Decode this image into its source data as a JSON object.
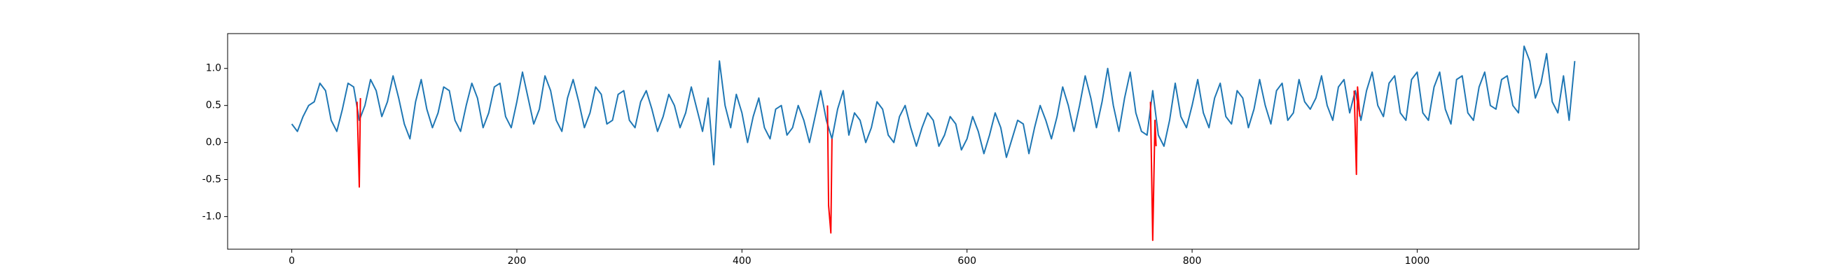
{
  "chart_data": {
    "type": "line",
    "xlim": [
      -57,
      1197
    ],
    "ylim": [
      -1.44,
      1.47
    ],
    "xticks": [
      0,
      200,
      400,
      600,
      800,
      1000
    ],
    "yticks": [
      {
        "value": -1.0,
        "label": "-1.0"
      },
      {
        "value": -0.5,
        "label": "-0.5"
      },
      {
        "value": 0.0,
        "label": "0.0"
      },
      0.5,
      {
        "value": 1.0,
        "label": "1.0"
      }
    ],
    "series": [
      {
        "color": "#1f77b4",
        "x": [
          0,
          5,
          10,
          15,
          20,
          25,
          30,
          35,
          40,
          45,
          50,
          55,
          60,
          65,
          70,
          75,
          80,
          85,
          90,
          95,
          100,
          105,
          110,
          115,
          120,
          125,
          130,
          135,
          140,
          145,
          150,
          155,
          160,
          165,
          170,
          175,
          180,
          185,
          190,
          195,
          200,
          205,
          210,
          215,
          220,
          225,
          230,
          235,
          240,
          245,
          250,
          255,
          260,
          265,
          270,
          275,
          280,
          285,
          290,
          295,
          300,
          305,
          310,
          315,
          320,
          325,
          330,
          335,
          340,
          345,
          350,
          355,
          360,
          365,
          370,
          375,
          380,
          385,
          390,
          395,
          400,
          405,
          410,
          415,
          420,
          425,
          430,
          435,
          440,
          445,
          450,
          455,
          460,
          465,
          470,
          475,
          480,
          485,
          490,
          495,
          500,
          505,
          510,
          515,
          520,
          525,
          530,
          535,
          540,
          545,
          550,
          555,
          560,
          565,
          570,
          575,
          580,
          585,
          590,
          595,
          600,
          605,
          610,
          615,
          620,
          625,
          630,
          635,
          640,
          645,
          650,
          655,
          660,
          665,
          670,
          675,
          680,
          685,
          690,
          695,
          700,
          705,
          710,
          715,
          720,
          725,
          730,
          735,
          740,
          745,
          750,
          755,
          760,
          765,
          770,
          775,
          780,
          785,
          790,
          795,
          800,
          805,
          810,
          815,
          820,
          825,
          830,
          835,
          840,
          845,
          850,
          855,
          860,
          865,
          870,
          875,
          880,
          885,
          890,
          895,
          900,
          905,
          910,
          915,
          920,
          925,
          930,
          935,
          940,
          945,
          950,
          955,
          960,
          965,
          970,
          975,
          980,
          985,
          990,
          995,
          1000,
          1005,
          1010,
          1015,
          1020,
          1025,
          1030,
          1035,
          1040,
          1045,
          1050,
          1055,
          1060,
          1065,
          1070,
          1075,
          1080,
          1085,
          1090,
          1095,
          1100,
          1105,
          1110,
          1115,
          1120,
          1125,
          1130,
          1135,
          1140
        ],
        "values": [
          0.25,
          0.15,
          0.35,
          0.5,
          0.55,
          0.8,
          0.7,
          0.3,
          0.15,
          0.45,
          0.8,
          0.75,
          0.3,
          0.5,
          0.85,
          0.7,
          0.35,
          0.55,
          0.9,
          0.6,
          0.25,
          0.05,
          0.55,
          0.85,
          0.45,
          0.2,
          0.4,
          0.75,
          0.7,
          0.3,
          0.15,
          0.5,
          0.8,
          0.6,
          0.2,
          0.4,
          0.75,
          0.8,
          0.35,
          0.2,
          0.55,
          0.95,
          0.6,
          0.25,
          0.45,
          0.9,
          0.7,
          0.3,
          0.15,
          0.6,
          0.85,
          0.55,
          0.2,
          0.4,
          0.75,
          0.65,
          0.25,
          0.3,
          0.65,
          0.7,
          0.3,
          0.2,
          0.55,
          0.7,
          0.45,
          0.15,
          0.35,
          0.65,
          0.5,
          0.2,
          0.4,
          0.75,
          0.45,
          0.15,
          0.6,
          -0.3,
          1.1,
          0.5,
          0.2,
          0.65,
          0.4,
          0.0,
          0.35,
          0.6,
          0.2,
          0.05,
          0.45,
          0.5,
          0.1,
          0.2,
          0.5,
          0.3,
          0.0,
          0.35,
          0.7,
          0.3,
          0.05,
          0.45,
          0.7,
          0.1,
          0.4,
          0.3,
          0.0,
          0.2,
          0.55,
          0.45,
          0.1,
          0.0,
          0.35,
          0.5,
          0.2,
          -0.05,
          0.2,
          0.4,
          0.3,
          -0.05,
          0.1,
          0.35,
          0.25,
          -0.1,
          0.05,
          0.35,
          0.15,
          -0.15,
          0.1,
          0.4,
          0.2,
          -0.2,
          0.05,
          0.3,
          0.25,
          -0.15,
          0.2,
          0.5,
          0.3,
          0.05,
          0.35,
          0.75,
          0.5,
          0.15,
          0.5,
          0.9,
          0.6,
          0.2,
          0.55,
          1.0,
          0.5,
          0.15,
          0.6,
          0.95,
          0.4,
          0.15,
          0.1,
          0.7,
          0.1,
          -0.05,
          0.3,
          0.8,
          0.35,
          0.2,
          0.5,
          0.85,
          0.4,
          0.2,
          0.6,
          0.8,
          0.35,
          0.25,
          0.7,
          0.6,
          0.2,
          0.45,
          0.85,
          0.5,
          0.25,
          0.7,
          0.8,
          0.3,
          0.4,
          0.85,
          0.55,
          0.45,
          0.6,
          0.9,
          0.5,
          0.3,
          0.75,
          0.85,
          0.4,
          0.7,
          0.3,
          0.7,
          0.95,
          0.5,
          0.35,
          0.8,
          0.9,
          0.4,
          0.3,
          0.85,
          0.95,
          0.4,
          0.3,
          0.75,
          0.95,
          0.45,
          0.25,
          0.85,
          0.9,
          0.4,
          0.3,
          0.75,
          0.95,
          0.5,
          0.45,
          0.85,
          0.9,
          0.5,
          0.4,
          1.3,
          1.1,
          0.6,
          0.8,
          1.2,
          0.55,
          0.4,
          0.9,
          0.3,
          1.1
        ]
      },
      {
        "color": "#ff0000",
        "x": [
          58,
          60,
          61
        ],
        "values": [
          0.55,
          -0.6,
          0.6
        ]
      },
      {
        "color": "#ff0000",
        "x": [
          476,
          477,
          479,
          480
        ],
        "values": [
          0.5,
          -0.85,
          -1.22,
          0.05
        ]
      },
      {
        "color": "#ff0000",
        "x": [
          763,
          765,
          767,
          768
        ],
        "values": [
          0.55,
          -1.32,
          0.3,
          -0.05
        ]
      },
      {
        "color": "#ff0000",
        "x": [
          944,
          946,
          947,
          949
        ],
        "values": [
          0.7,
          -0.43,
          0.75,
          0.35
        ]
      }
    ]
  }
}
